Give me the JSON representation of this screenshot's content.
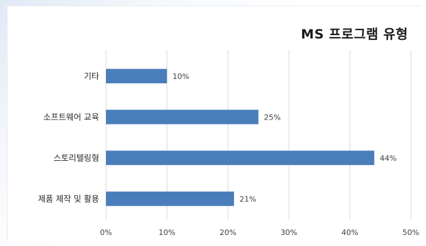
{
  "chart_data": {
    "type": "bar",
    "orientation": "horizontal",
    "title": "MS 프로그램 유형",
    "categories": [
      "기타",
      "소프트웨어 교육",
      "스토리텔링형",
      "제품 제작 및 활용"
    ],
    "values": [
      10,
      25,
      44,
      21
    ],
    "value_labels": [
      "10%",
      "25%",
      "44%",
      "21%"
    ],
    "xlim": [
      0,
      50
    ],
    "xticks": [
      "0%",
      "10%",
      "20%",
      "30%",
      "40%",
      "50%"
    ],
    "grid": true,
    "bar_color": "#4a7ebb"
  }
}
